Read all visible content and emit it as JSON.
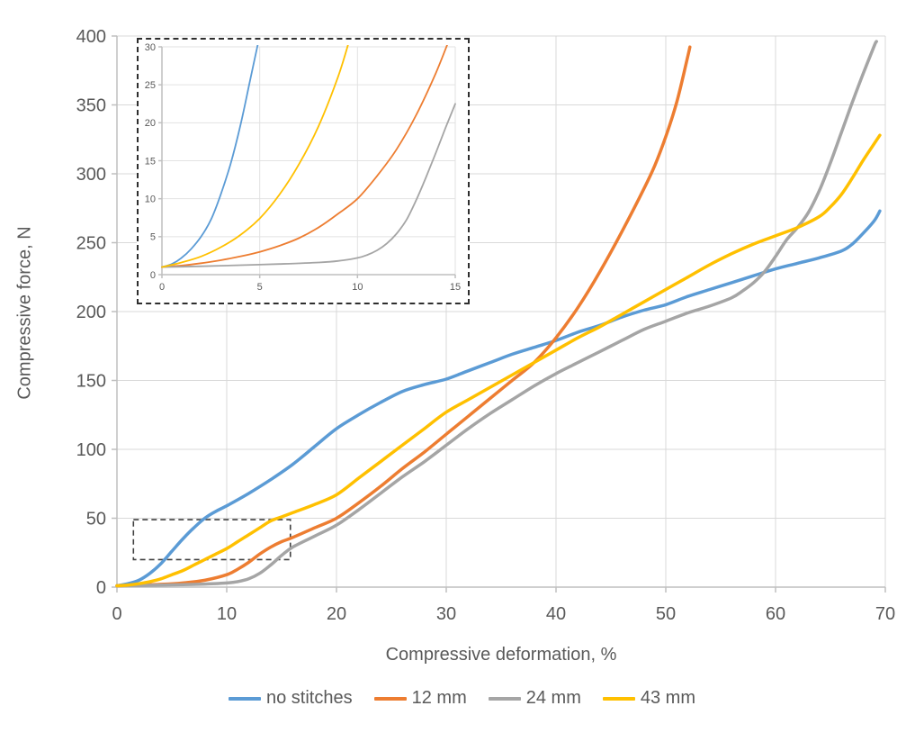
{
  "figure_title": "",
  "colors": {
    "background": "#FFFFFF",
    "gridline": "#D9D9D9",
    "inset_gridline": "#E2E2E2",
    "axis_line": "#BFBFBF",
    "tick_text": "#595959",
    "annotation": "#404040",
    "series_blue": "#5B9BD5",
    "series_orange": "#ED7D31",
    "series_gray": "#A5A5A5",
    "series_yellow": "#FFC000"
  },
  "legend": {
    "items": [
      {
        "label": "no stitches",
        "color": "#5B9BD5"
      },
      {
        "label": "12 mm",
        "color": "#ED7D31"
      },
      {
        "label": "24 mm",
        "color": "#A5A5A5"
      },
      {
        "label": "43 mm",
        "color": "#FFC000"
      }
    ]
  },
  "chart_data": [
    {
      "id": "main",
      "type": "line",
      "title": "",
      "xlabel": "Compressive deformation, %",
      "ylabel": "Compressive force, N",
      "xlim": [
        0,
        70
      ],
      "ylim": [
        0,
        400
      ],
      "xticks": [
        0,
        10,
        20,
        30,
        40,
        50,
        60,
        70
      ],
      "yticks": [
        0,
        50,
        100,
        150,
        200,
        250,
        300,
        350,
        400
      ],
      "grid": true,
      "legend_position": "bottom",
      "zoom_region_annotation": {
        "x0": 1.5,
        "x1": 15.8,
        "y0": 20,
        "y1": 49
      },
      "series": [
        {
          "name": "no stitches",
          "color": "#5B9BD5",
          "points": [
            [
              0,
              1
            ],
            [
              1,
              2.5
            ],
            [
              2,
              5
            ],
            [
              3,
              10
            ],
            [
              4,
              17
            ],
            [
              5,
              26
            ],
            [
              6,
              35
            ],
            [
              7,
              43
            ],
            [
              8,
              50
            ],
            [
              9,
              55
            ],
            [
              10,
              59
            ],
            [
              12,
              68
            ],
            [
              14,
              78
            ],
            [
              16,
              89
            ],
            [
              18,
              102
            ],
            [
              20,
              115
            ],
            [
              22,
              125
            ],
            [
              24,
              134
            ],
            [
              26,
              142
            ],
            [
              28,
              147
            ],
            [
              30,
              151
            ],
            [
              32,
              157
            ],
            [
              34,
              163
            ],
            [
              36,
              169
            ],
            [
              38,
              174
            ],
            [
              40,
              179
            ],
            [
              42,
              185
            ],
            [
              44,
              190
            ],
            [
              46,
              196
            ],
            [
              48,
              201
            ],
            [
              50,
              205
            ],
            [
              52,
              211
            ],
            [
              54,
              216
            ],
            [
              56,
              221
            ],
            [
              58,
              226
            ],
            [
              60,
              231
            ],
            [
              62,
              235
            ],
            [
              64,
              239
            ],
            [
              66,
              244
            ],
            [
              67,
              249
            ],
            [
              68,
              257
            ],
            [
              69,
              266
            ],
            [
              69.5,
              273
            ]
          ]
        },
        {
          "name": "12 mm",
          "color": "#ED7D31",
          "points": [
            [
              0,
              1
            ],
            [
              2,
              1.5
            ],
            [
              4,
              2
            ],
            [
              6,
              3
            ],
            [
              8,
              5
            ],
            [
              10,
              9
            ],
            [
              11,
              13
            ],
            [
              12,
              18
            ],
            [
              13,
              24
            ],
            [
              14,
              29
            ],
            [
              15,
              33
            ],
            [
              16,
              36
            ],
            [
              18,
              43
            ],
            [
              20,
              50
            ],
            [
              22,
              61
            ],
            [
              24,
              73
            ],
            [
              26,
              86
            ],
            [
              28,
              98
            ],
            [
              30,
              111
            ],
            [
              32,
              124
            ],
            [
              34,
              137
            ],
            [
              36,
              150
            ],
            [
              38,
              163
            ],
            [
              40,
              181
            ],
            [
              42,
              203
            ],
            [
              44,
              229
            ],
            [
              46,
              258
            ],
            [
              48,
              289
            ],
            [
              49,
              306
            ],
            [
              50,
              327
            ],
            [
              51,
              352
            ],
            [
              52,
              385
            ],
            [
              52.2,
              392
            ]
          ]
        },
        {
          "name": "24 mm",
          "color": "#A5A5A5",
          "points": [
            [
              0,
              1
            ],
            [
              2,
              1.2
            ],
            [
              4,
              1.5
            ],
            [
              6,
              1.8
            ],
            [
              8,
              2.2
            ],
            [
              10,
              3
            ],
            [
              11,
              4
            ],
            [
              12,
              6
            ],
            [
              13,
              10
            ],
            [
              14,
              16
            ],
            [
              15,
              23
            ],
            [
              16,
              29
            ],
            [
              18,
              37
            ],
            [
              20,
              45
            ],
            [
              22,
              56
            ],
            [
              24,
              68
            ],
            [
              26,
              80
            ],
            [
              28,
              91
            ],
            [
              30,
              103
            ],
            [
              32,
              115
            ],
            [
              34,
              126
            ],
            [
              36,
              136
            ],
            [
              38,
              146
            ],
            [
              40,
              155
            ],
            [
              42,
              163
            ],
            [
              44,
              171
            ],
            [
              46,
              179
            ],
            [
              48,
              187
            ],
            [
              50,
              193
            ],
            [
              52,
              199
            ],
            [
              54,
              204
            ],
            [
              56,
              210
            ],
            [
              57,
              215
            ],
            [
              58,
              221
            ],
            [
              59,
              229
            ],
            [
              60,
              240
            ],
            [
              61,
              252
            ],
            [
              62,
              261
            ],
            [
              63,
              272
            ],
            [
              64,
              288
            ],
            [
              65,
              308
            ],
            [
              66,
              330
            ],
            [
              67,
              352
            ],
            [
              68,
              373
            ],
            [
              69,
              393
            ],
            [
              69.2,
              396
            ]
          ]
        },
        {
          "name": "43 mm",
          "color": "#FFC000",
          "points": [
            [
              0,
              1
            ],
            [
              1,
              1.5
            ],
            [
              2,
              2.5
            ],
            [
              3,
              4
            ],
            [
              4,
              6
            ],
            [
              5,
              9
            ],
            [
              6,
              12
            ],
            [
              7,
              16
            ],
            [
              8,
              20
            ],
            [
              9,
              24
            ],
            [
              10,
              28
            ],
            [
              11,
              33
            ],
            [
              12,
              38
            ],
            [
              13,
              43
            ],
            [
              14,
              48
            ],
            [
              15,
              51
            ],
            [
              16,
              54
            ],
            [
              18,
              60
            ],
            [
              20,
              67
            ],
            [
              22,
              79
            ],
            [
              24,
              91
            ],
            [
              26,
              103
            ],
            [
              28,
              115
            ],
            [
              30,
              127
            ],
            [
              32,
              136
            ],
            [
              34,
              145
            ],
            [
              36,
              154
            ],
            [
              38,
              163
            ],
            [
              40,
              172
            ],
            [
              42,
              181
            ],
            [
              44,
              189
            ],
            [
              46,
              198
            ],
            [
              48,
              207
            ],
            [
              50,
              216
            ],
            [
              52,
              225
            ],
            [
              54,
              234
            ],
            [
              56,
              242
            ],
            [
              58,
              249
            ],
            [
              60,
              255
            ],
            [
              62,
              261
            ],
            [
              64,
              269
            ],
            [
              65,
              276
            ],
            [
              66,
              285
            ],
            [
              67,
              297
            ],
            [
              68,
              310
            ],
            [
              69,
              322
            ],
            [
              69.5,
              328
            ]
          ]
        }
      ]
    },
    {
      "id": "inset",
      "type": "line",
      "title": "",
      "xlabel": "",
      "ylabel": "",
      "xlim": [
        0,
        15
      ],
      "ylim": [
        0,
        30
      ],
      "xticks": [
        0,
        5,
        10,
        15
      ],
      "yticks": [
        0,
        5,
        10,
        15,
        20,
        25,
        30
      ],
      "grid": true,
      "legend_position": "none",
      "series": [
        {
          "name": "no stitches",
          "color": "#5B9BD5",
          "points": [
            [
              0,
              1
            ],
            [
              0.5,
              1.4
            ],
            [
              1,
              2.2
            ],
            [
              1.5,
              3.4
            ],
            [
              2,
              5
            ],
            [
              2.5,
              7.2
            ],
            [
              3,
              10.5
            ],
            [
              3.5,
              14.5
            ],
            [
              4,
              19.5
            ],
            [
              4.5,
              25.5
            ],
            [
              5,
              31.5
            ]
          ]
        },
        {
          "name": "12 mm",
          "color": "#ED7D31",
          "points": [
            [
              0,
              1
            ],
            [
              1,
              1.2
            ],
            [
              2,
              1.5
            ],
            [
              3,
              1.9
            ],
            [
              4,
              2.4
            ],
            [
              5,
              3
            ],
            [
              6,
              3.8
            ],
            [
              7,
              4.8
            ],
            [
              8,
              6.2
            ],
            [
              9,
              8
            ],
            [
              10,
              10
            ],
            [
              11,
              13
            ],
            [
              12,
              16.5
            ],
            [
              13,
              21
            ],
            [
              14,
              26.5
            ],
            [
              14.7,
              31
            ]
          ]
        },
        {
          "name": "24 mm",
          "color": "#A5A5A5",
          "points": [
            [
              0,
              1
            ],
            [
              2,
              1.1
            ],
            [
              4,
              1.25
            ],
            [
              6,
              1.4
            ],
            [
              8,
              1.6
            ],
            [
              9,
              1.8
            ],
            [
              10,
              2.2
            ],
            [
              10.5,
              2.6
            ],
            [
              11,
              3.2
            ],
            [
              11.5,
              4.1
            ],
            [
              12,
              5.4
            ],
            [
              12.5,
              7.2
            ],
            [
              13,
              9.8
            ],
            [
              13.5,
              12.8
            ],
            [
              14,
              16
            ],
            [
              14.5,
              19.3
            ],
            [
              15,
              22.5
            ]
          ]
        },
        {
          "name": "43 mm",
          "color": "#FFC000",
          "points": [
            [
              0,
              1
            ],
            [
              1,
              1.6
            ],
            [
              2,
              2.4
            ],
            [
              3,
              3.6
            ],
            [
              4,
              5.2
            ],
            [
              5,
              7.4
            ],
            [
              6,
              10.5
            ],
            [
              7,
              14.5
            ],
            [
              8,
              19.5
            ],
            [
              9,
              26
            ],
            [
              9.6,
              31
            ]
          ]
        }
      ]
    }
  ]
}
